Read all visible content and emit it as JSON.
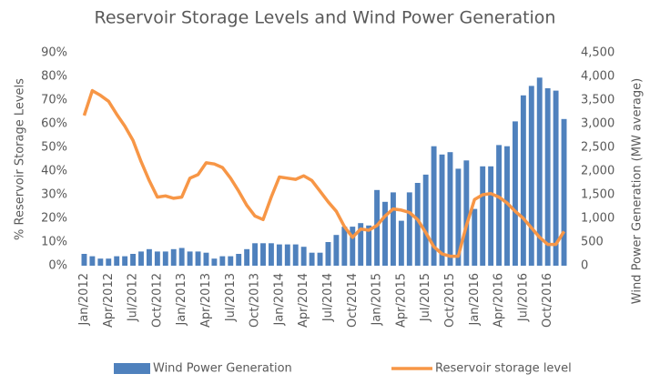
{
  "chart_data": {
    "type": "combo",
    "title": "Reservoir Storage Levels and Wind Power Generation",
    "y_label": "% Reservoir Storage Levels",
    "y2_label": "Wind Power Generation (MW average)",
    "categories": [
      "Jan/2012",
      null,
      null,
      "Apr/2012",
      null,
      null,
      "Jul/2012",
      null,
      null,
      "Oct/2012",
      null,
      null,
      "Jan/2013",
      null,
      null,
      "Apr/2013",
      null,
      null,
      "Jul/2013",
      null,
      null,
      "Oct/2013",
      null,
      null,
      "Jan/2014",
      null,
      null,
      "Apr/2014",
      null,
      null,
      "Jul/2014",
      null,
      null,
      "Oct/2014",
      null,
      null,
      "Jan/2015",
      null,
      null,
      "Apr/2015",
      null,
      null,
      "Jul/2015",
      null,
      null,
      "Oct/2015",
      null,
      null,
      "Jan/2016",
      null,
      null,
      "Apr/2016",
      null,
      null,
      "Jul/2016",
      null,
      null,
      "Oct/2016",
      null,
      null
    ],
    "series": [
      {
        "name": "Wind Power Generation",
        "type": "bar",
        "axis": "y2",
        "color": "#4f81bd",
        "values": [
          250,
          200,
          150,
          150,
          200,
          200,
          250,
          300,
          350,
          300,
          300,
          350,
          375,
          300,
          300,
          275,
          150,
          200,
          200,
          250,
          350,
          475,
          475,
          475,
          450,
          450,
          450,
          400,
          275,
          275,
          500,
          650,
          825,
          825,
          900,
          850,
          1600,
          1350,
          1550,
          950,
          1550,
          1750,
          1925,
          2525,
          2350,
          2400,
          2050,
          2225,
          1200,
          2100,
          2100,
          2550,
          2525,
          3050,
          3600,
          3800,
          3975,
          3750,
          3700,
          3100
        ]
      },
      {
        "name": "Reservoir storage level",
        "type": "line",
        "color": "#f79646",
        "values": [
          63.5,
          74,
          72,
          69.5,
          64,
          59,
          53,
          44,
          36,
          29,
          29.5,
          28.5,
          29,
          37,
          38.5,
          43.5,
          43,
          41.5,
          37,
          31.5,
          25.5,
          21,
          19.5,
          29,
          37.5,
          37,
          36.5,
          38,
          36,
          31.5,
          27,
          23,
          16.5,
          12,
          15.5,
          15,
          17,
          21,
          24,
          23.5,
          22.5,
          19.5,
          14,
          8,
          5,
          4,
          4,
          17,
          28,
          30,
          30.5,
          29,
          26.5,
          23,
          20,
          16,
          12,
          9,
          9,
          14.5
        ]
      }
    ],
    "ylim": [
      0,
      90
    ],
    "yticks": [
      {
        "value": 0,
        "label": "0%"
      },
      {
        "value": 10,
        "label": "10%"
      },
      {
        "value": 20,
        "label": "20%"
      },
      {
        "value": 30,
        "label": "30%"
      },
      {
        "value": 40,
        "label": "40%"
      },
      {
        "value": 50,
        "label": "50%"
      },
      {
        "value": 60,
        "label": "60%"
      },
      {
        "value": 70,
        "label": "70%"
      },
      {
        "value": 80,
        "label": "80%"
      },
      {
        "value": 90,
        "label": "90%"
      }
    ],
    "y2lim": [
      0,
      4500
    ],
    "y2ticks": [
      0,
      500,
      {
        "value": 1000,
        "label": "1,000"
      },
      {
        "value": 1500,
        "label": "1,500"
      },
      {
        "value": 2000,
        "label": "2,000"
      },
      {
        "value": 2500,
        "label": "2,500"
      },
      {
        "value": 3000,
        "label": "3,000"
      },
      {
        "value": 3500,
        "label": "3,500"
      },
      {
        "value": 4000,
        "label": "4,000"
      },
      {
        "value": 4500,
        "label": "4,500"
      }
    ],
    "legend": "bottom"
  }
}
